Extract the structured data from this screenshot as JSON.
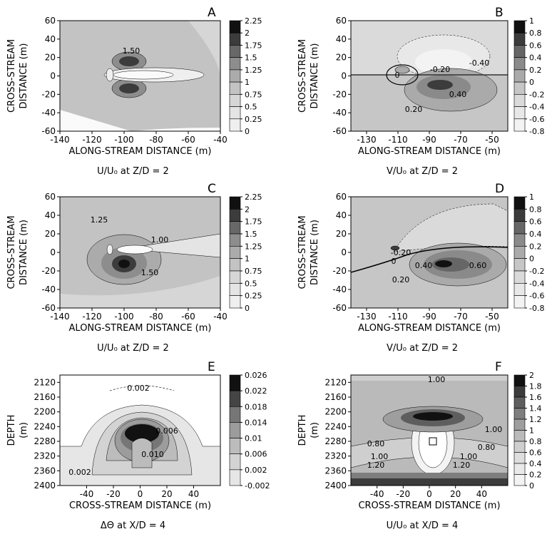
{
  "figure": {
    "panels": [
      {
        "letter": "A",
        "caption": "U/U₀ at Z/D = 2",
        "xlabel": "ALONG-STREAM DISTANCE (m)",
        "ylabel": [
          "CROSS-STREAM",
          "DISTANCE (m)"
        ],
        "xlim": [
          -140,
          -40
        ],
        "ylim": [
          -60,
          60
        ],
        "x_ticks": [
          "-140",
          "-120",
          "-100",
          "-80",
          "-60",
          "-40"
        ],
        "y_ticks": [
          "60",
          "40",
          "20",
          "0",
          "-20",
          "-40",
          "-60"
        ],
        "colorbar": [
          "2.25",
          "2",
          "1.75",
          "1.5",
          "1.25",
          "1",
          "0.75",
          "0.5",
          "0.25",
          "0"
        ],
        "contour_labels": [
          "1.50"
        ]
      },
      {
        "letter": "B",
        "caption": "V/U₀ at Z/D = 2",
        "xlabel": "ALONG-STREAM DISTANCE (m)",
        "ylabel": [
          "CROSS-STREAM",
          "DISTANCE (m)"
        ],
        "xlim": [
          -140,
          -40
        ],
        "ylim": [
          -60,
          60
        ],
        "x_ticks": [
          "-130",
          "-110",
          "-90",
          "-70",
          "-50"
        ],
        "y_ticks": [
          "60",
          "40",
          "20",
          "0",
          "-20",
          "-40",
          "-60"
        ],
        "colorbar": [
          "1",
          "0.8",
          "0.6",
          "0.4",
          "0.2",
          "0",
          "-0.2",
          "-0.4",
          "-0.6",
          "-0.8"
        ],
        "contour_labels": [
          "-0.40",
          "-0.20",
          "0.40",
          "0.20",
          "0"
        ]
      },
      {
        "letter": "C",
        "caption": "U/U₀ at Z/D = 2",
        "xlabel": "ALONG-STREAM DISTANCE (m)",
        "ylabel": [
          "CROSS-STREAM",
          "DISTANCE (m)"
        ],
        "xlim": [
          -140,
          -40
        ],
        "ylim": [
          -60,
          60
        ],
        "x_ticks": [
          "-140",
          "-120",
          "-100",
          "-80",
          "-60",
          "-40"
        ],
        "y_ticks": [
          "60",
          "40",
          "20",
          "0",
          "-20",
          "-40",
          "-60"
        ],
        "colorbar": [
          "2.25",
          "2",
          "1.75",
          "1.5",
          "1.25",
          "1",
          "0.75",
          "0.5",
          "0.25",
          "0"
        ],
        "contour_labels": [
          "1.25",
          "1.00",
          "1.50"
        ]
      },
      {
        "letter": "D",
        "caption": "V/U₀ at Z/D = 2",
        "xlabel": "ALONG-STREAM DISTANCE (m)",
        "ylabel": [
          "CROSS-STREAM",
          "DISTANCE (m)"
        ],
        "xlim": [
          -140,
          -40
        ],
        "ylim": [
          -60,
          60
        ],
        "x_ticks": [
          "-130",
          "-110",
          "-90",
          "-70",
          "-50"
        ],
        "y_ticks": [
          "60",
          "40",
          "20",
          "0",
          "-20",
          "-40",
          "-60"
        ],
        "colorbar": [
          "1",
          "0.8",
          "0.6",
          "0.4",
          "0.2",
          "0",
          "-0.2",
          "-0.4",
          "-0.6",
          "-0.8"
        ],
        "contour_labels": [
          "-0.20",
          "0",
          "0.40",
          "0.20",
          "0.60"
        ]
      },
      {
        "letter": "E",
        "caption": "ΔΘ at X/D = 4",
        "xlabel": "CROSS-STREAM DISTANCE (m)",
        "ylabel": [
          "DEPTH",
          "(m)"
        ],
        "xlim": [
          -60,
          60
        ],
        "ylim": [
          2400,
          2100
        ],
        "x_ticks": [
          "-40",
          "-20",
          "0",
          "20",
          "40"
        ],
        "y_ticks": [
          "2120",
          "2160",
          "2200",
          "2240",
          "2280",
          "2320",
          "2360",
          "2400"
        ],
        "colorbar": [
          "0.026",
          "0.022",
          "0.018",
          "0.014",
          "0.01",
          "0.006",
          "0.002",
          "-0.002"
        ],
        "contour_labels": [
          "0.002",
          "0.006",
          "0.010",
          "0.002"
        ]
      },
      {
        "letter": "F",
        "caption": "U/U₀ at X/D = 4",
        "xlabel": "CROSS-STREAM DISTANCE (m)",
        "ylabel": [
          "DEPTH",
          "(m)"
        ],
        "xlim": [
          -60,
          60
        ],
        "ylim": [
          2400,
          2100
        ],
        "x_ticks": [
          "-40",
          "-20",
          "0",
          "20",
          "40"
        ],
        "y_ticks": [
          "2120",
          "2160",
          "2200",
          "2240",
          "2280",
          "2320",
          "2360",
          "2400"
        ],
        "colorbar": [
          "2",
          "1.8",
          "1.6",
          "1.4",
          "1.2",
          "1",
          "0.8",
          "0.6",
          "0.4",
          "0.2",
          "0"
        ],
        "contour_labels": [
          "1.00",
          "1.00",
          "0.80",
          "0.80",
          "1.00",
          "1.00",
          "1.20",
          "1.20"
        ]
      }
    ]
  },
  "chart_data": [
    {
      "type": "heatmap",
      "panel": "A",
      "title": "U/U₀ at Z/D = 2",
      "xlabel": "ALONG-STREAM DISTANCE (m)",
      "ylabel": "CROSS-STREAM DISTANCE (m)",
      "xlim": [
        -140,
        -40
      ],
      "ylim": [
        -60,
        60
      ],
      "colorbar_levels": [
        0,
        0.25,
        0.5,
        0.75,
        1,
        1.25,
        1.5,
        1.75,
        2,
        2.25
      ],
      "contour_labels": [
        1.5
      ]
    },
    {
      "type": "heatmap",
      "panel": "B",
      "title": "V/U₀ at Z/D = 2",
      "xlabel": "ALONG-STREAM DISTANCE (m)",
      "ylabel": "CROSS-STREAM DISTANCE (m)",
      "xlim": [
        -140,
        -40
      ],
      "ylim": [
        -60,
        60
      ],
      "colorbar_levels": [
        -0.8,
        -0.6,
        -0.4,
        -0.2,
        0,
        0.2,
        0.4,
        0.6,
        0.8,
        1
      ],
      "contour_labels": [
        -0.4,
        -0.2,
        0.4,
        0.2,
        0
      ]
    },
    {
      "type": "heatmap",
      "panel": "C",
      "title": "U/U₀ at Z/D = 2",
      "xlabel": "ALONG-STREAM DISTANCE (m)",
      "ylabel": "CROSS-STREAM DISTANCE (m)",
      "xlim": [
        -140,
        -40
      ],
      "ylim": [
        -60,
        60
      ],
      "colorbar_levels": [
        0,
        0.25,
        0.5,
        0.75,
        1,
        1.25,
        1.5,
        1.75,
        2,
        2.25
      ],
      "contour_labels": [
        1.25,
        1.0,
        1.5
      ]
    },
    {
      "type": "heatmap",
      "panel": "D",
      "title": "V/U₀ at Z/D = 2",
      "xlabel": "ALONG-STREAM DISTANCE (m)",
      "ylabel": "CROSS-STREAM DISTANCE (m)",
      "xlim": [
        -140,
        -40
      ],
      "ylim": [
        -60,
        60
      ],
      "colorbar_levels": [
        -0.8,
        -0.6,
        -0.4,
        -0.2,
        0,
        0.2,
        0.4,
        0.6,
        0.8,
        1
      ],
      "contour_labels": [
        -0.2,
        0,
        0.4,
        0.2,
        0.6
      ]
    },
    {
      "type": "heatmap",
      "panel": "E",
      "title": "ΔΘ at X/D = 4",
      "xlabel": "CROSS-STREAM DISTANCE (m)",
      "ylabel": "DEPTH (m)",
      "xlim": [
        -60,
        60
      ],
      "ylim": [
        2400,
        2100
      ],
      "colorbar_levels": [
        -0.002,
        0.002,
        0.006,
        0.01,
        0.014,
        0.018,
        0.022,
        0.026
      ],
      "contour_labels": [
        0.002,
        0.006,
        0.01,
        0.002
      ]
    },
    {
      "type": "heatmap",
      "panel": "F",
      "title": "U/U₀ at X/D = 4",
      "xlabel": "CROSS-STREAM DISTANCE (m)",
      "ylabel": "DEPTH (m)",
      "xlim": [
        -60,
        60
      ],
      "ylim": [
        2400,
        2100
      ],
      "colorbar_levels": [
        0,
        0.2,
        0.4,
        0.6,
        0.8,
        1,
        1.2,
        1.4,
        1.6,
        1.8,
        2
      ],
      "contour_labels": [
        1.0,
        1.0,
        0.8,
        0.8,
        1.0,
        1.0,
        1.2,
        1.2
      ]
    }
  ]
}
